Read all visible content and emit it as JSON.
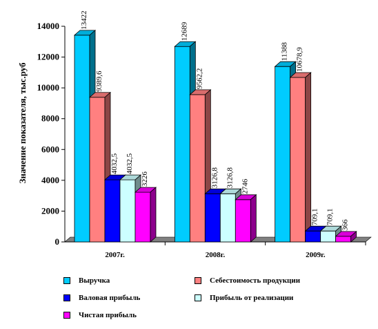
{
  "chart_data": {
    "type": "bar",
    "categories": [
      "2007г.",
      "2008г.",
      "2009г."
    ],
    "ylabel": "Значение показателя, тыс.руб",
    "ylim": [
      0,
      14000
    ],
    "yticks": [
      "0",
      "2000",
      "4000",
      "6000",
      "8000",
      "10000",
      "12000",
      "14000"
    ],
    "series": [
      {
        "name": "Выручка",
        "color": "#00CCFF",
        "values": [
          13422,
          12689,
          11388
        ],
        "labels": [
          "13422",
          "12689",
          "11388"
        ]
      },
      {
        "name": "Себестоимость продукции",
        "color": "#FF8080",
        "values": [
          9389.6,
          9562.2,
          10678.9
        ],
        "labels": [
          "9389,6",
          "9562,2",
          "10678,9"
        ]
      },
      {
        "name": "Валовая прибыль",
        "color": "#0000FF",
        "values": [
          4032.5,
          3126.8,
          709.1
        ],
        "labels": [
          "4032,5",
          "3126,8",
          "709,1"
        ]
      },
      {
        "name": "Прибыль от реализации",
        "color": "#CCFFFF",
        "values": [
          4032.5,
          3126.8,
          709.1
        ],
        "labels": [
          "4032,5",
          "3126,8",
          "709,1"
        ]
      },
      {
        "name": "Чистая прибыль",
        "color": "#FF00FF",
        "values": [
          3226,
          2746,
          366
        ],
        "labels": [
          "3226",
          "2746",
          "366"
        ]
      }
    ],
    "legend_position": "bottom",
    "grid": false
  }
}
